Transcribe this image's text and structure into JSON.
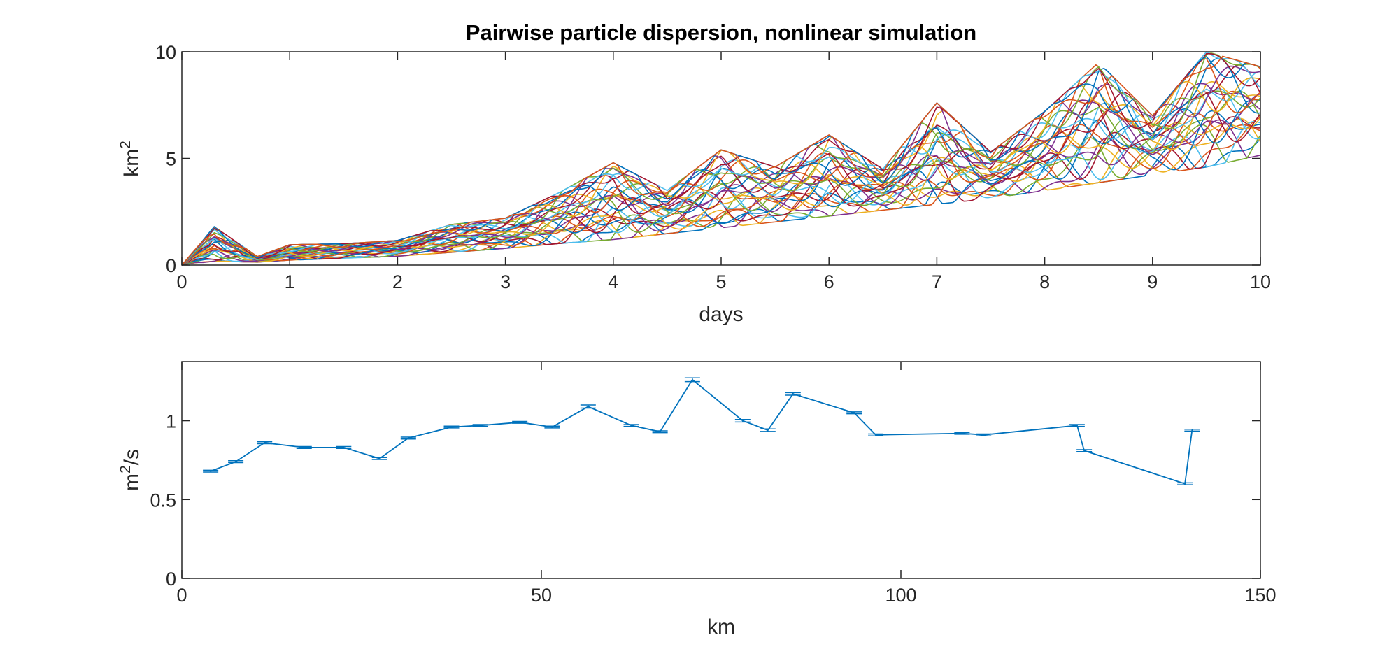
{
  "chart_data": [
    {
      "type": "line",
      "title": "Pairwise particle dispersion, nonlinear simulation",
      "xlabel": "days",
      "ylabel": "km",
      "ylabel_superscript": "2",
      "xlim": [
        0,
        10
      ],
      "ylim": [
        0,
        10
      ],
      "xticks": [
        "0",
        "1",
        "2",
        "3",
        "4",
        "5",
        "6",
        "7",
        "8",
        "9",
        "10"
      ],
      "yticks": [
        "0",
        "5",
        "10"
      ],
      "grid": false,
      "legend": "none",
      "colors": [
        "#0072bd",
        "#d95319",
        "#edb120",
        "#7e2f8e",
        "#77ac30",
        "#4dbeee",
        "#a2142f"
      ],
      "series_count": 30,
      "envelope": {
        "x": [
          0,
          0.3,
          0.7,
          1,
          1.5,
          2,
          2.5,
          3,
          3.5,
          4,
          4.5,
          5,
          5.5,
          6,
          6.5,
          7,
          7.5,
          8,
          8.5,
          9,
          9.5,
          10
        ],
        "low": [
          0,
          0.2,
          0.15,
          0.25,
          0.35,
          0.45,
          0.65,
          0.85,
          1.1,
          1.3,
          1.6,
          1.9,
          2.2,
          2.5,
          2.8,
          3.1,
          3.4,
          3.8,
          4.2,
          4.6,
          5.0,
          5.6
        ],
        "high": [
          0,
          1.8,
          0.4,
          0.95,
          1.0,
          1.15,
          1.9,
          2.2,
          3.4,
          4.8,
          3.5,
          5.4,
          4.6,
          6.1,
          4.5,
          7.6,
          5.3,
          7.2,
          9.5,
          7.0,
          10.0,
          9.3
        ]
      }
    },
    {
      "type": "line",
      "title": "",
      "xlabel": "km",
      "ylabel": "m",
      "ylabel_superscript": "2",
      "ylabel_suffix": "/s",
      "xlim": [
        0,
        150
      ],
      "ylim": [
        0,
        1.375
      ],
      "xticks": [
        "0",
        "50",
        "100",
        "150"
      ],
      "yticks": [
        "0",
        "0.5",
        "1"
      ],
      "grid": false,
      "legend": "none",
      "color": "#0072bd",
      "error_bars": true,
      "x": [
        4,
        7.5,
        11.5,
        17,
        22.5,
        27.5,
        31.5,
        37.5,
        41.5,
        47,
        51.5,
        56.5,
        62.5,
        66.5,
        71,
        78,
        81.5,
        85,
        93.5,
        96.5,
        108.5,
        111.5,
        124.5,
        125.5,
        139.5,
        140.5
      ],
      "y": [
        0.68,
        0.74,
        0.86,
        0.83,
        0.83,
        0.76,
        0.89,
        0.96,
        0.97,
        0.99,
        0.96,
        1.09,
        0.97,
        0.93,
        1.26,
        1.0,
        0.94,
        1.17,
        1.05,
        0.91,
        0.92,
        0.91,
        0.97,
        0.81,
        0.6,
        0.94
      ],
      "err": [
        0.006,
        0.006,
        0.006,
        0.006,
        0.006,
        0.006,
        0.006,
        0.006,
        0.006,
        0.006,
        0.006,
        0.01,
        0.006,
        0.006,
        0.012,
        0.008,
        0.008,
        0.008,
        0.006,
        0.006,
        0.006,
        0.006,
        0.006,
        0.006,
        0.006,
        0.006
      ]
    }
  ]
}
